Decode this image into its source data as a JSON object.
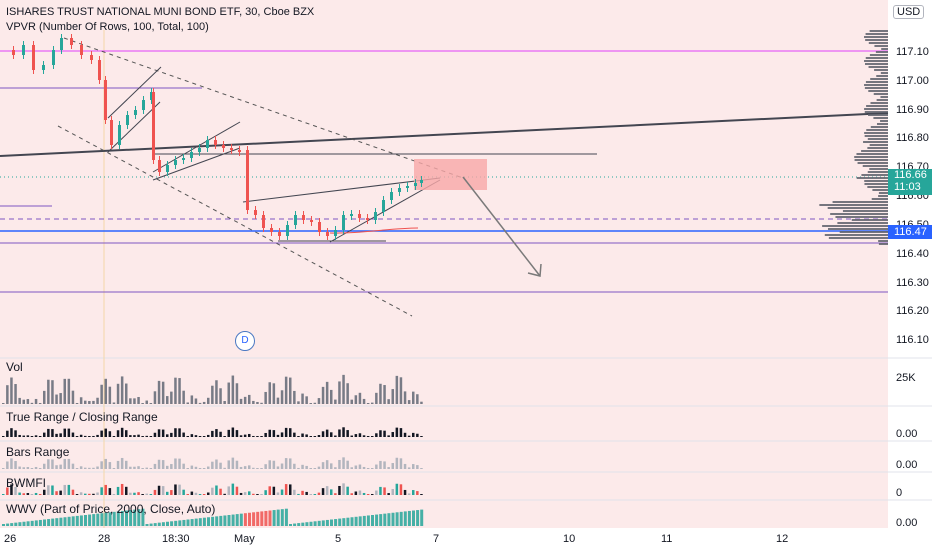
{
  "header": {
    "title": "ISHARES TRUST NATIONAL MUNI BOND ETF, 30, Cboe BZX",
    "indicator": "VPVR (Number Of Rows, 100, Total, 100)"
  },
  "currency_button": "USD",
  "price_axis": [
    "117.10",
    "117.00",
    "116.90",
    "116.80",
    "116.70",
    "116.60",
    "116.50",
    "116.40",
    "116.30",
    "116.20",
    "116.10"
  ],
  "current_price": {
    "value": "116.66",
    "countdown": "11:03",
    "color": "#26a69a"
  },
  "level_tag": {
    "value": "116.47",
    "color": "#2962ff"
  },
  "time_axis": [
    "26",
    "28",
    "18:30",
    "May",
    "5",
    "7",
    "10",
    "11",
    "12"
  ],
  "dividend_marker": "D",
  "panes": [
    {
      "label": "Vol",
      "scale": "25K"
    },
    {
      "label": "True Range / Closing Range",
      "scale": "0.00"
    },
    {
      "label": "Bars Range",
      "scale": "0.00"
    },
    {
      "label": "BWMFI",
      "scale": "0"
    },
    {
      "label": "WWV (Part of Price, 2000, Close, Auto)",
      "scale": "0.00"
    }
  ],
  "colors": {
    "background_tint": "#fceaea",
    "up": "#26a69a",
    "down": "#ef5350",
    "resistance": "#e040fb",
    "channel": "#7e57c2",
    "trendline": "#434651",
    "target_box": "#f7a8a8"
  }
}
